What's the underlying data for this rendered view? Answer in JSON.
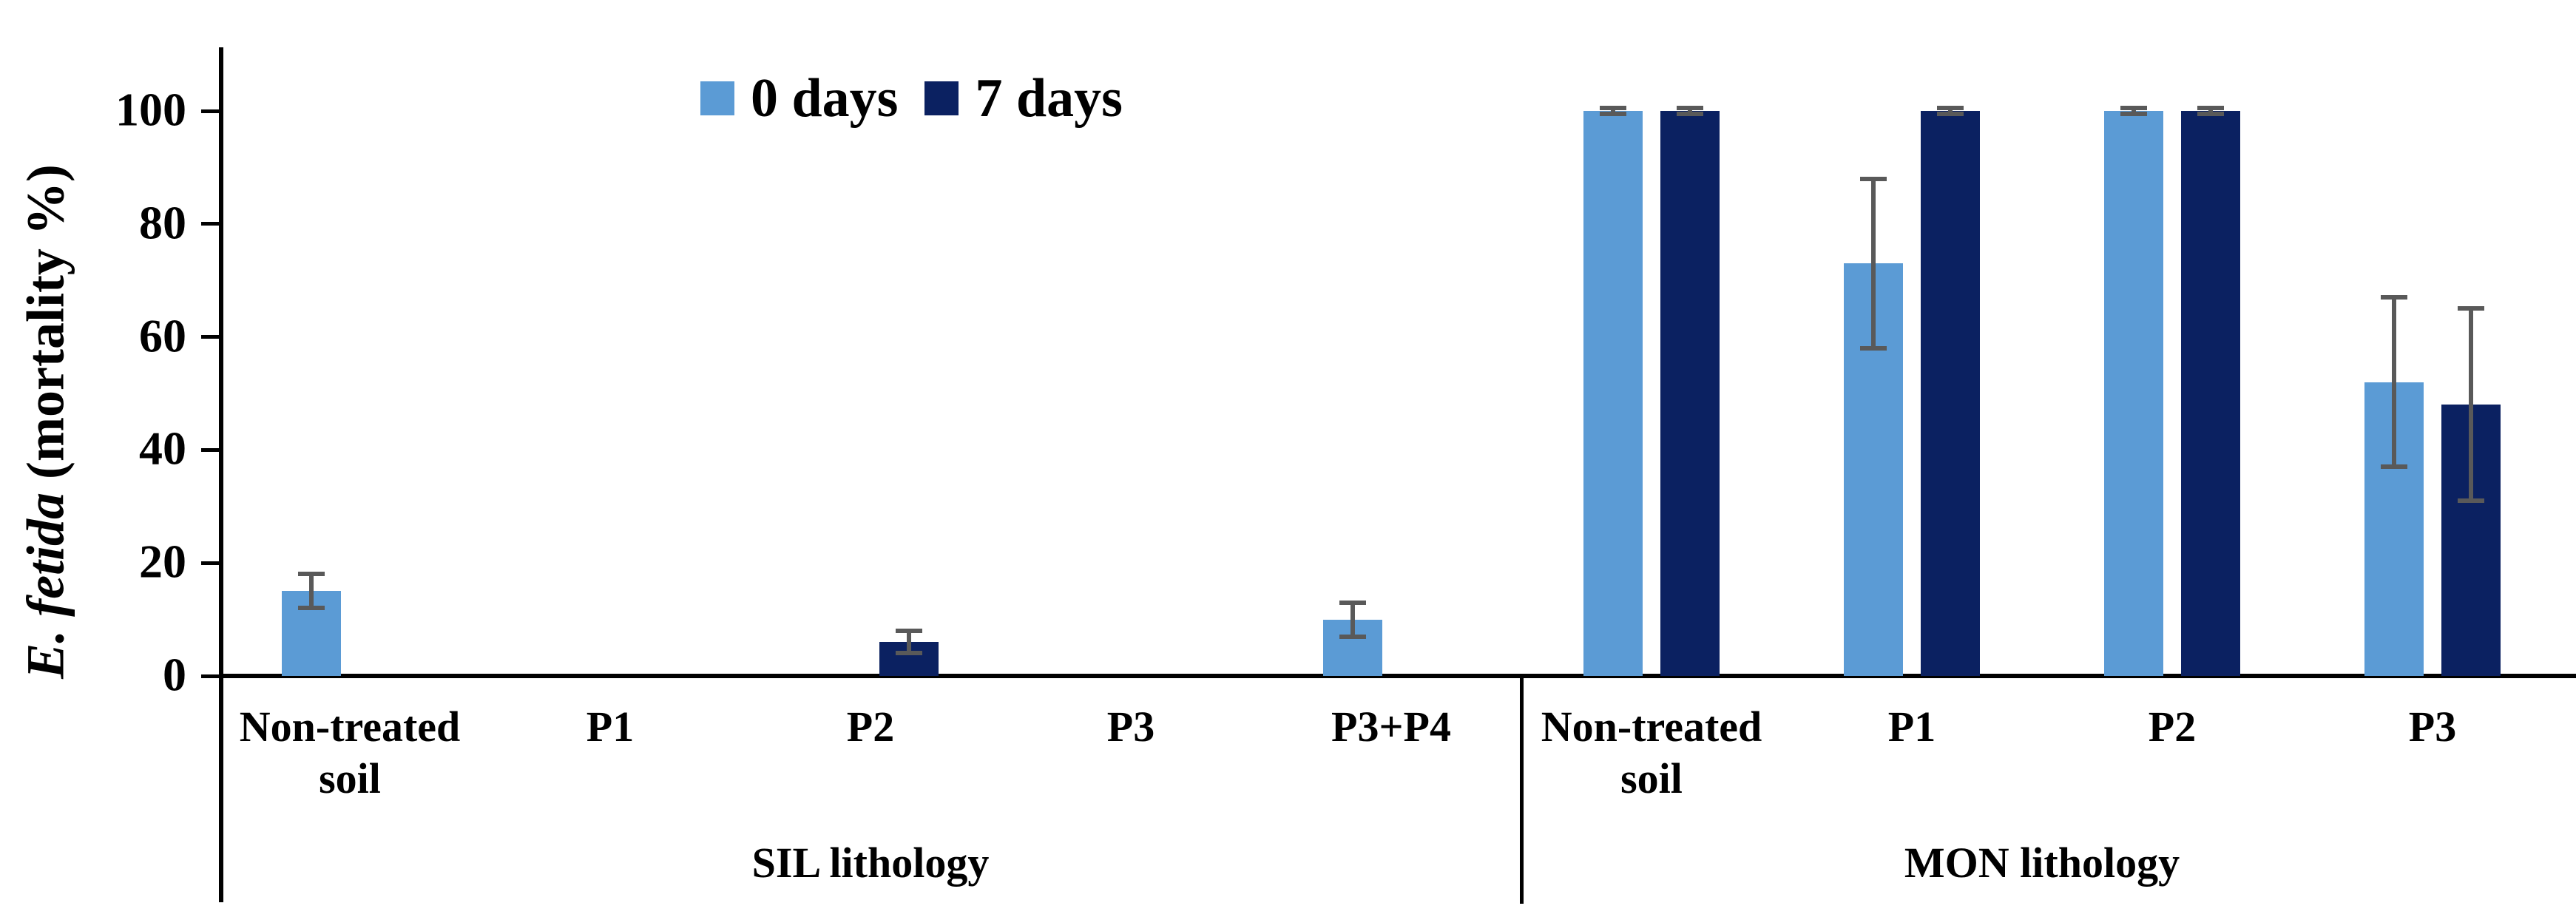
{
  "figure": {
    "y_axis_title": {
      "italic": "E. fetida",
      "rest": " (mortality %)"
    }
  },
  "chart_data": {
    "type": "bar",
    "title": "",
    "ylabel": "E. fetida (mortality %)",
    "xlabel": "",
    "ylim": [
      0,
      110
    ],
    "yticks": [
      0,
      20,
      40,
      60,
      80,
      100
    ],
    "grid": false,
    "legend_position": "top-center",
    "error_bar_color": "#595959",
    "axis_color": "#000000",
    "groups": [
      {
        "label": "SIL lithology",
        "categories": [
          "Non-treated soil",
          "P1",
          "P2",
          "P3",
          "P3+P4"
        ]
      },
      {
        "label": "MON lithology",
        "categories": [
          "Non-treated soil",
          "P1",
          "P2",
          "P3"
        ]
      }
    ],
    "series": [
      {
        "name": "0 days",
        "color": "#5B9BD5",
        "values": [
          15,
          0,
          0,
          0,
          10,
          100,
          73,
          100,
          52
        ],
        "errors": [
          3,
          0,
          0,
          0,
          3,
          0.5,
          15,
          0.5,
          15
        ]
      },
      {
        "name": "7 days",
        "color": "#0B2161",
        "values": [
          0,
          0,
          6,
          0,
          0,
          100,
          100,
          100,
          48
        ],
        "errors": [
          0,
          0,
          2,
          0,
          0,
          0.5,
          0.5,
          0.5,
          17
        ]
      }
    ]
  }
}
